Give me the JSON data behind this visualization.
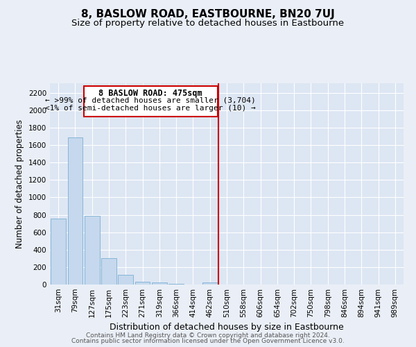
{
  "title": "8, BASLOW ROAD, EASTBOURNE, BN20 7UJ",
  "subtitle": "Size of property relative to detached houses in Eastbourne",
  "xlabel": "Distribution of detached houses by size in Eastbourne",
  "ylabel": "Number of detached properties",
  "bar_color": "#c5d8ed",
  "bar_edge_color": "#7aafd4",
  "bin_labels": [
    "31sqm",
    "79sqm",
    "127sqm",
    "175sqm",
    "223sqm",
    "271sqm",
    "319sqm",
    "366sqm",
    "414sqm",
    "462sqm",
    "510sqm",
    "558sqm",
    "606sqm",
    "654sqm",
    "702sqm",
    "750sqm",
    "798sqm",
    "846sqm",
    "894sqm",
    "941sqm",
    "989sqm"
  ],
  "bar_heights": [
    760,
    1690,
    790,
    300,
    110,
    35,
    20,
    5,
    0,
    20,
    0,
    0,
    0,
    0,
    0,
    0,
    0,
    0,
    0,
    0,
    0
  ],
  "ylim": [
    0,
    2310
  ],
  "yticks": [
    0,
    200,
    400,
    600,
    800,
    1000,
    1200,
    1400,
    1600,
    1800,
    2000,
    2200
  ],
  "property_line_x": 9.5,
  "property_line_color": "#cc0000",
  "annotation_title": "8 BASLOW ROAD: 475sqm",
  "annotation_line1": "← >99% of detached houses are smaller (3,704)",
  "annotation_line2": "<1% of semi-detached houses are larger (10) →",
  "annotation_border_color": "#cc0000",
  "background_color": "#eaeff7",
  "plot_bg_color": "#dde6f3",
  "footer_line1": "Contains HM Land Registry data © Crown copyright and database right 2024.",
  "footer_line2": "Contains public sector information licensed under the Open Government Licence v3.0.",
  "title_fontsize": 11,
  "subtitle_fontsize": 9.5,
  "xlabel_fontsize": 9,
  "ylabel_fontsize": 8.5,
  "tick_fontsize": 7.5,
  "annot_title_fontsize": 8.5,
  "annot_text_fontsize": 8,
  "footer_fontsize": 6.5
}
